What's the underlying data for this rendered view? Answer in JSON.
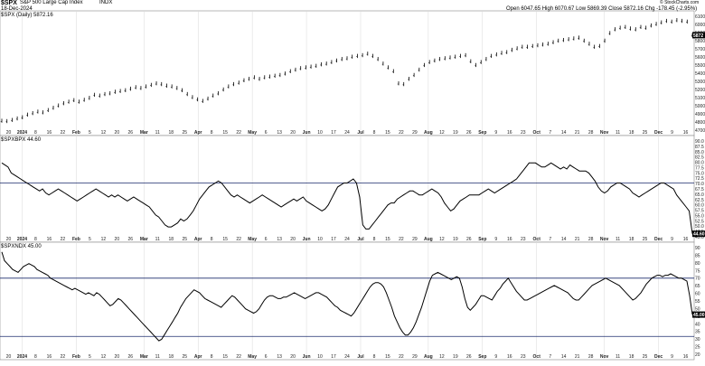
{
  "header": {
    "symbol": "$SPX",
    "name": "S&P 500 Large Cap Index",
    "exchange": "INDX",
    "date": "18-Dec-2024",
    "series_label": "$SPX (Daily) 5872.16",
    "quote": "Open 6047.65  High 6070.67  Low 5869.39  Close 5872.16  Chg -178.45 (-2.95%)",
    "credit": "© StockCharts.com"
  },
  "panels": {
    "price": {
      "y_ticks": [
        "6100",
        "6000",
        "5900",
        "5800",
        "5700",
        "5600",
        "5500",
        "5400",
        "5300",
        "5200",
        "5100",
        "5000",
        "4900",
        "4800",
        "4700"
      ],
      "last_label": "5872"
    },
    "rsi1": {
      "label": "$SPXBPX 44.60",
      "y_ticks": [
        "90.0",
        "87.5",
        "85.0",
        "82.5",
        "80.0",
        "77.5",
        "75.0",
        "72.5",
        "70.0",
        "67.5",
        "65.0",
        "62.5",
        "60.0",
        "57.5",
        "55.0",
        "52.5",
        "50.0",
        "47.5",
        "45.0"
      ],
      "last_label": "44.60"
    },
    "rsi2": {
      "label": "$SPXNDX 45.00",
      "y_ticks": [
        "90",
        "85",
        "80",
        "75",
        "70",
        "65",
        "60",
        "55",
        "50",
        "45",
        "40",
        "35",
        "30",
        "25",
        "20"
      ],
      "last_label": "45.00"
    }
  },
  "x_axis": [
    "20",
    "2024",
    "8",
    "16",
    "22",
    "Feb",
    "5",
    "12",
    "20",
    "26",
    "Mar",
    "11",
    "18",
    "25",
    "Apr",
    "8",
    "15",
    "22",
    "May",
    "6",
    "13",
    "20",
    "Jun",
    "10",
    "17",
    "24",
    "Jul",
    "8",
    "15",
    "22",
    "29",
    "Aug",
    "12",
    "19",
    "26",
    "Sep",
    "9",
    "16",
    "23",
    "Oct",
    "7",
    "14",
    "21",
    "28",
    "Nov",
    "11",
    "18",
    "25",
    "Dec",
    "9",
    "16"
  ],
  "chart_data": [
    {
      "type": "line",
      "title": "$SPX S&P 500 Large Cap Index",
      "series": [
        {
          "name": "$SPX (Daily) 5872.16",
          "values": [
            4750,
            4745,
            4760,
            4780,
            4795,
            4830,
            4850,
            4870,
            4860,
            4890,
            4920,
            4950,
            4980,
            5000,
            5020,
            5000,
            5025,
            5050,
            5090,
            5080,
            5100,
            5110,
            5130,
            5140,
            5150,
            5170,
            5190,
            5180,
            5200,
            5220,
            5240,
            5230,
            5210,
            5200,
            5180,
            5150,
            5100,
            5060,
            5030,
            5010,
            5040,
            5080,
            5110,
            5160,
            5200,
            5230,
            5250,
            5280,
            5300,
            5320,
            5300,
            5320,
            5330,
            5340,
            5350,
            5370,
            5400,
            5420,
            5440,
            5450,
            5460,
            5470,
            5490,
            5500,
            5520,
            5540,
            5560,
            5570,
            5590,
            5600,
            5610,
            5630,
            5600,
            5560,
            5500,
            5450,
            5400,
            5240,
            5230,
            5300,
            5350,
            5420,
            5480,
            5520,
            5540,
            5560,
            5570,
            5580,
            5590,
            5600,
            5610,
            5530,
            5480,
            5520,
            5560,
            5600,
            5620,
            5640,
            5650,
            5680,
            5700,
            5720,
            5720,
            5730,
            5740,
            5750,
            5760,
            5780,
            5800,
            5810,
            5820,
            5830,
            5840,
            5800,
            5760,
            5720,
            5730,
            5800,
            5900,
            5950,
            5970,
            5980,
            5960,
            5950,
            5980,
            5970,
            6000,
            6020,
            6040,
            6060,
            6050,
            6070,
            6060,
            6050,
            5872
          ]
        }
      ],
      "y_ticks": [
        "6100",
        "6000",
        "5900",
        "5800",
        "5700",
        "5600",
        "5500",
        "5400",
        "5300",
        "5200",
        "5100",
        "5000",
        "4900",
        "4800",
        "4700"
      ],
      "ylim": [
        4650,
        6120
      ]
    },
    {
      "type": "line",
      "series": [
        {
          "name": "$SPXBPX 44.60",
          "values": [
            80,
            79,
            78,
            75,
            74,
            73,
            72,
            71,
            70,
            69,
            68,
            67,
            66,
            67,
            65,
            64,
            65,
            66,
            67,
            66,
            65,
            64,
            63,
            62,
            61,
            62,
            63,
            64,
            65,
            66,
            67,
            66,
            65,
            64,
            63,
            64,
            63,
            64,
            63,
            62,
            61,
            62,
            63,
            62,
            61,
            60,
            59,
            58,
            56,
            54,
            53,
            51,
            49,
            48,
            48,
            49,
            50,
            52,
            51,
            52,
            54,
            56,
            59,
            62,
            64,
            66,
            68,
            69,
            70,
            71,
            70,
            68,
            66,
            64,
            63,
            64,
            63,
            62,
            61,
            60,
            61,
            62,
            63,
            64,
            63,
            62,
            61,
            60,
            59,
            58,
            59,
            60,
            61,
            62,
            61,
            62,
            63,
            61,
            60,
            59,
            58,
            57,
            56,
            57,
            59,
            62,
            65,
            68,
            69,
            70,
            70,
            71,
            72,
            70,
            63,
            49,
            47,
            47,
            49,
            51,
            53,
            55,
            57,
            59,
            60,
            60,
            62,
            63,
            64,
            65,
            66,
            66,
            65,
            64,
            64,
            65,
            66,
            67,
            66,
            65,
            63,
            60,
            58,
            56,
            57,
            59,
            61,
            62,
            63,
            64,
            64,
            64,
            64,
            65,
            66,
            67,
            66,
            65,
            66,
            67,
            68,
            69,
            70,
            71,
            72,
            74,
            76,
            78,
            80,
            80,
            80,
            79,
            78,
            78,
            79,
            80,
            79,
            78,
            77,
            78,
            77,
            79,
            78,
            77,
            76,
            76,
            76,
            75,
            73,
            71,
            68,
            66,
            65,
            66,
            68,
            69,
            70,
            70,
            69,
            68,
            67,
            65,
            64,
            63,
            64,
            65,
            66,
            67,
            68,
            69,
            70,
            70,
            69,
            68,
            67,
            64,
            62,
            60,
            58,
            56,
            44.6
          ]
        }
      ],
      "reference_lines": [
        70
      ],
      "ylim": [
        44,
        91
      ]
    },
    {
      "type": "line",
      "series": [
        {
          "name": "$SPXNDX 45.00",
          "values": [
            88,
            82,
            80,
            78,
            76,
            75,
            74,
            76,
            78,
            79,
            80,
            79,
            78,
            76,
            75,
            74,
            73,
            72,
            70,
            69,
            68,
            67,
            66,
            65,
            64,
            63,
            62,
            63,
            62,
            61,
            60,
            59,
            60,
            59,
            58,
            60,
            59,
            57,
            55,
            53,
            51,
            52,
            54,
            56,
            55,
            53,
            51,
            49,
            47,
            45,
            43,
            41,
            39,
            37,
            35,
            33,
            31,
            29,
            27,
            28,
            31,
            34,
            37,
            40,
            43,
            46,
            50,
            53,
            56,
            58,
            60,
            62,
            61,
            60,
            58,
            56,
            55,
            54,
            53,
            52,
            51,
            50,
            52,
            54,
            56,
            58,
            57,
            55,
            53,
            51,
            49,
            48,
            47,
            46,
            47,
            49,
            52,
            55,
            57,
            58,
            58,
            57,
            56,
            56,
            57,
            57,
            58,
            59,
            60,
            59,
            58,
            57,
            56,
            57,
            58,
            59,
            60,
            60,
            59,
            58,
            57,
            55,
            53,
            51,
            50,
            48,
            47,
            46,
            45,
            44,
            46,
            49,
            52,
            55,
            58,
            61,
            64,
            66,
            67,
            67,
            66,
            64,
            60,
            55,
            50,
            44,
            40,
            36,
            33,
            31,
            31,
            33,
            36,
            40,
            45,
            50,
            56,
            62,
            68,
            72,
            73,
            74,
            73,
            72,
            71,
            70,
            69,
            70,
            71,
            70,
            64,
            56,
            50,
            48,
            50,
            52,
            55,
            58,
            58,
            57,
            56,
            55,
            58,
            61,
            63,
            66,
            68,
            70,
            67,
            64,
            61,
            59,
            57,
            55,
            55,
            56,
            57,
            58,
            59,
            60,
            61,
            62,
            63,
            64,
            65,
            64,
            63,
            62,
            61,
            60,
            58,
            56,
            55,
            55,
            57,
            59,
            61,
            63,
            65,
            66,
            67,
            68,
            69,
            70,
            69,
            68,
            67,
            66,
            65,
            63,
            61,
            59,
            57,
            55,
            56,
            58,
            60,
            63,
            66,
            68,
            70,
            71,
            72,
            72,
            71,
            72,
            72,
            73,
            72,
            71,
            70,
            70,
            69,
            68,
            58,
            45
          ]
        }
      ],
      "reference_lines": [
        70,
        30
      ],
      "ylim": [
        19,
        91
      ]
    }
  ]
}
